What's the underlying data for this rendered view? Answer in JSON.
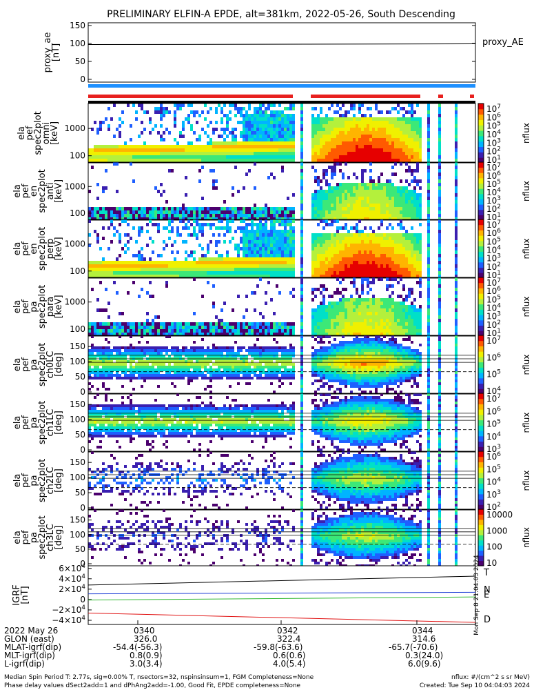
{
  "title": "PRELIMINARY ELFIN-A EPDE, alt=381km, 2022-05-26, South Descending",
  "colors": {
    "proxy_line": "#000000",
    "science_bar": "#1e90ff",
    "flag_red": "#e8201e",
    "flag_black": "#000000",
    "grf_T": "#000000",
    "grf_N": "#1f3fd6",
    "grf_E": "#2fb82f",
    "grf_D": "#e01010"
  },
  "colormap": [
    "#ffffff",
    "#4b006e",
    "#3a1fb0",
    "#1e5fff",
    "#00b4ff",
    "#00e0c8",
    "#3ce878",
    "#b4f03c",
    "#f0f000",
    "#ffb400",
    "#ff5a00",
    "#e60000"
  ],
  "chart_data": [
    {
      "type": "line",
      "panel": "proxy_ae",
      "ylabel": "proxy_ae [nT]",
      "ylim": [
        0,
        150
      ],
      "yticks": [
        "150",
        "100",
        "50",
        "0"
      ],
      "legend": "proxy_AE",
      "series": [
        {
          "name": "proxy_AE",
          "x": [
            "03:39",
            "03:45"
          ],
          "values": [
            97,
            99
          ]
        }
      ]
    },
    {
      "type": "heatmap",
      "panel": "ela_pef_spec2plot_omni",
      "ylabel": "ela pef spec2plot omni [keV]",
      "yscale": "log",
      "yticks": [
        "1000",
        "100"
      ],
      "colorbar": {
        "label": "nflux",
        "ticks": [
          "10^7",
          "10^6",
          "10^5",
          "10^4",
          "10^3",
          "10^2",
          "10^1"
        ]
      }
    },
    {
      "type": "heatmap",
      "panel": "ela_pef_en_spec2plot_anti",
      "ylabel": "ela pef en spec2plot anti [keV]",
      "yscale": "log",
      "yticks": [
        "1000",
        "100"
      ],
      "colorbar": {
        "label": "nflux",
        "ticks": [
          "10^7",
          "10^6",
          "10^5",
          "10^4",
          "10^3",
          "10^2",
          "10^1"
        ]
      }
    },
    {
      "type": "heatmap",
      "panel": "ela_pef_en_spec2plot_perp",
      "ylabel": "ela pef en spec2plot perp [keV]",
      "yscale": "log",
      "yticks": [
        "1000",
        "100"
      ],
      "colorbar": {
        "label": "nflux",
        "ticks": [
          "10^7",
          "10^6",
          "10^5",
          "10^4",
          "10^3",
          "10^2",
          "10^1"
        ]
      }
    },
    {
      "type": "heatmap",
      "panel": "ela_pef_pa_spec2plot_para",
      "ylabel": "ela pef pa spec2plot para [keV]",
      "yscale": "log",
      "yticks": [
        "1000",
        "100"
      ],
      "colorbar": {
        "label": "nflux",
        "ticks": [
          "10^7",
          "10^6",
          "10^5",
          "10^4",
          "10^3",
          "10^2",
          "10^1"
        ]
      }
    },
    {
      "type": "heatmap",
      "panel": "ela_pef_pa_spec2plot_ch0LC",
      "ylabel": "ela pef pa spec2plot ch0LC [deg]",
      "ylim": [
        0,
        180
      ],
      "yticks": [
        "150",
        "100",
        "50",
        "0"
      ],
      "colorbar": {
        "label": "nflux",
        "ticks": [
          "10^7",
          "10^6",
          "10^5",
          "10^4"
        ]
      }
    },
    {
      "type": "heatmap",
      "panel": "ela_pef_pa_spec2plot_ch1LC",
      "ylabel": "ela pef pa spec2plot ch1LC [deg]",
      "ylim": [
        0,
        180
      ],
      "yticks": [
        "150",
        "100",
        "50",
        "0"
      ],
      "colorbar": {
        "label": "nflux",
        "ticks": [
          "10^7",
          "10^6",
          "10^5",
          "10^4",
          "10^3"
        ]
      }
    },
    {
      "type": "heatmap",
      "panel": "ela_pef_pa_spec2plot_ch2LC",
      "ylabel": "ela pef pa spec2plot ch2LC [deg]",
      "ylim": [
        0,
        180
      ],
      "yticks": [
        "150",
        "100",
        "50",
        "0"
      ],
      "colorbar": {
        "label": "nflux",
        "ticks": [
          "10^6",
          "10^5",
          "10^4",
          "10^3",
          "10^2"
        ]
      }
    },
    {
      "type": "heatmap",
      "panel": "ela_pef_pa_spec2plot_ch3LC",
      "ylabel": "ela pef pa spec2plot ch3LC [deg]",
      "ylim": [
        0,
        180
      ],
      "yticks": [
        "150",
        "100",
        "50",
        "0"
      ],
      "colorbar": {
        "label": "nflux",
        "ticks": [
          "10000",
          "1000",
          "100",
          "10"
        ]
      }
    },
    {
      "type": "line",
      "panel": "IGRF",
      "ylabel": "IGRF [nT]",
      "ylim": [
        -48000,
        65000
      ],
      "yticks": [
        "6×10^4",
        "4×10^4",
        "2×10^4",
        "0",
        "−2×10^4",
        "−4×10^4"
      ],
      "side_note": "Mon Sep 8 21:04:03 2024",
      "series": [
        {
          "name": "T",
          "x": [
            "03:39",
            "03:45"
          ],
          "values": [
            28000,
            45000
          ]
        },
        {
          "name": "N",
          "x": [
            "03:39",
            "03:45"
          ],
          "values": [
            11000,
            14000
          ]
        },
        {
          "name": "E",
          "x": [
            "03:39",
            "03:45"
          ],
          "values": [
            -1000,
            5000
          ]
        },
        {
          "name": "D",
          "x": [
            "03:39",
            "03:45"
          ],
          "values": [
            -26000,
            -44000
          ]
        }
      ]
    }
  ],
  "xaxis": {
    "date": "2022 May 26",
    "ticks": [
      "0340",
      "0342",
      "0344"
    ],
    "rows": [
      {
        "label": "GLON (east)",
        "values": [
          "326.0",
          "322.4",
          "314.6"
        ]
      },
      {
        "label": "MLAT-igrf(dip)",
        "values": [
          "-54.4(-56.3)",
          "-59.8(-63.6)",
          "-65.7(-70.6)"
        ]
      },
      {
        "label": "MLT-igrf(dip)",
        "values": [
          "0.8(0.9)",
          "0.6(0.6)",
          "0.3(24.0)"
        ]
      },
      {
        "label": "L-igrf(dip)",
        "values": [
          "3.0(3.4)",
          "4.0(5.4)",
          "6.0(9.6)"
        ]
      }
    ]
  },
  "footer": {
    "line1": "Median Spin Period T: 2.77s, sig=0.00% T, nsectors=32, nspinsinsum=1, FGM Completeness=None",
    "line2": "Phase delay values dSect2add=1 and dPhAng2add=-1.00, Good Fit, EPDE completeness=None",
    "units": "nflux: #/(cm^2 s sr MeV)",
    "created": "Created: Tue Sep 10 04:04:03 2024"
  }
}
